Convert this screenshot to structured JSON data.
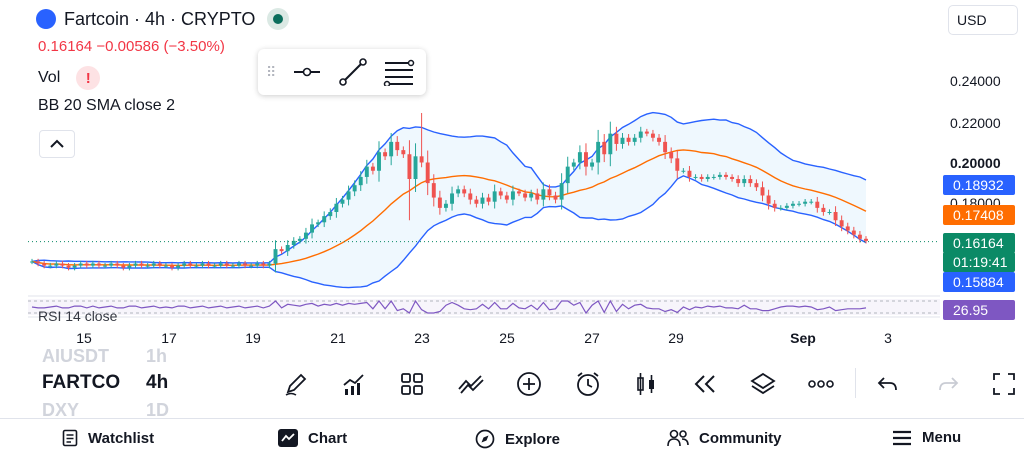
{
  "symbol": {
    "title": "Fartcoin · 4h · CRYPTO",
    "price_change": "0.16164 −0.00586 (−3.50%)",
    "vol_label": "Vol",
    "vol_warning": "!",
    "indicator_label": "BB 20 SMA close 2",
    "rsi_label": "RSI 14 close"
  },
  "currency": "USD",
  "drawing_tools": [
    "horizontal-line-icon",
    "trend-line-icon",
    "parallel-channel-icon"
  ],
  "price_axis": {
    "labels": [
      "0.24000",
      "0.22000",
      "0.20000",
      "0.18000"
    ],
    "bold_label": "0.20000"
  },
  "price_tags": {
    "bb_upper": "0.18932",
    "bb_basis": "0.17408",
    "last_price": "0.16164",
    "countdown": "01:19:41",
    "bb_lower": "0.15884",
    "rsi": "26.95"
  },
  "time_axis": [
    "15",
    "17",
    "19",
    "21",
    "23",
    "25",
    "27",
    "29",
    "Sep",
    "3"
  ],
  "colors": {
    "up": "#26a69a",
    "down": "#ef5350",
    "bb_band": "#2962ff",
    "bb_basis": "#ff6d00",
    "last_price_tag": "#0b8a66",
    "rsi_tag": "#7e57c2"
  },
  "bottom_toolbar": {
    "ticker_above": "AIUSDT",
    "ticker": "FARTCO",
    "ticker_below": "DXY",
    "tf_above": "1h",
    "timeframe": "4h",
    "tf_below": "1D",
    "icons": [
      "draw-pencil-icon",
      "indicators-icon",
      "templates-icon",
      "compare-icon",
      "add-icon",
      "alert-clock-icon",
      "candle-style-icon",
      "replay-icon",
      "layers-icon",
      "more-icon",
      "undo-icon",
      "redo-icon",
      "fullscreen-icon"
    ]
  },
  "nav": [
    {
      "label": "Watchlist",
      "icon": "watchlist-icon"
    },
    {
      "label": "Chart",
      "icon": "chart-icon"
    },
    {
      "label": "Explore",
      "icon": "compass-icon"
    },
    {
      "label": "Community",
      "icon": "people-icon"
    },
    {
      "label": "Menu",
      "icon": "menu-icon"
    }
  ],
  "chart_data": {
    "type": "candlestick",
    "x_ticks": [
      "15",
      "17",
      "19",
      "21",
      "23",
      "25",
      "27",
      "29",
      "Sep",
      "3"
    ],
    "y_ticks": [
      0.24,
      0.22,
      0.2,
      0.18
    ],
    "last_price": 0.16164,
    "close_series": [
      0.152,
      0.151,
      0.15,
      0.15,
      0.151,
      0.15,
      0.149,
      0.15,
      0.151,
      0.15,
      0.151,
      0.15,
      0.15,
      0.151,
      0.15,
      0.149,
      0.15,
      0.151,
      0.15,
      0.15,
      0.151,
      0.15,
      0.15,
      0.149,
      0.15,
      0.151,
      0.15,
      0.15,
      0.151,
      0.15,
      0.15,
      0.151,
      0.15,
      0.15,
      0.151,
      0.15,
      0.15,
      0.151,
      0.15,
      0.151,
      0.158,
      0.157,
      0.16,
      0.162,
      0.163,
      0.166,
      0.17,
      0.171,
      0.174,
      0.176,
      0.18,
      0.182,
      0.186,
      0.189,
      0.193,
      0.198,
      0.196,
      0.205,
      0.203,
      0.21,
      0.206,
      0.204,
      0.192,
      0.203,
      0.2,
      0.19,
      0.183,
      0.178,
      0.18,
      0.185,
      0.187,
      0.185,
      0.182,
      0.18,
      0.183,
      0.181,
      0.186,
      0.184,
      0.182,
      0.186,
      0.185,
      0.183,
      0.185,
      0.182,
      0.187,
      0.184,
      0.182,
      0.19,
      0.198,
      0.2,
      0.205,
      0.198,
      0.2,
      0.21,
      0.204,
      0.214,
      0.209,
      0.212,
      0.21,
      0.212,
      0.215,
      0.214,
      0.212,
      0.21,
      0.205,
      0.202,
      0.196,
      0.196,
      0.193,
      0.193,
      0.192,
      0.193,
      0.193,
      0.194,
      0.193,
      0.192,
      0.19,
      0.192,
      0.19,
      0.188,
      0.184,
      0.18,
      0.178,
      0.178,
      0.179,
      0.18,
      0.18,
      0.181,
      0.181,
      0.178,
      0.176,
      0.176,
      0.172,
      0.169,
      0.167,
      0.165,
      0.163,
      0.162
    ]
  }
}
